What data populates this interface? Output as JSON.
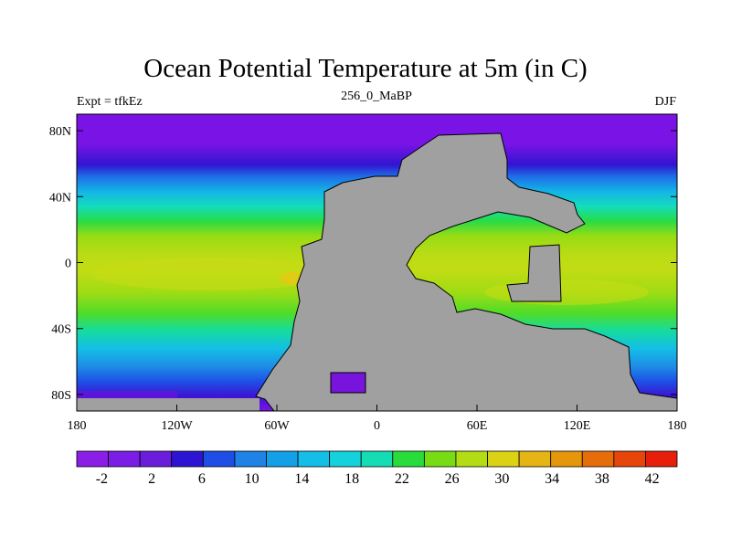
{
  "title": "Ocean Potential Temperature at 5m (in C)",
  "left_label": "Expt = tfkEz",
  "center_label": "256_0_MaBP",
  "right_label": "DJF",
  "lat_ticks": [
    {
      "label": "80N",
      "value": 80
    },
    {
      "label": "40N",
      "value": 40
    },
    {
      "label": "0",
      "value": 0
    },
    {
      "label": "40S",
      "value": -40
    },
    {
      "label": "80S",
      "value": -80
    }
  ],
  "lon_ticks": [
    {
      "label": "180",
      "value": -180
    },
    {
      "label": "120W",
      "value": -120
    },
    {
      "label": "60W",
      "value": -60
    },
    {
      "label": "0",
      "value": 0
    },
    {
      "label": "60E",
      "value": 60
    },
    {
      "label": "120E",
      "value": 120
    },
    {
      "label": "180",
      "value": 180
    }
  ],
  "colorbar": {
    "colors": [
      "#8a1ee6",
      "#7a1ee6",
      "#6a1edc",
      "#2d14d2",
      "#1e4ee6",
      "#1e82e6",
      "#14a0e6",
      "#14bee6",
      "#14d2dc",
      "#14dcb4",
      "#28dc3c",
      "#78dc14",
      "#b4dc14",
      "#dcd214",
      "#e6b414",
      "#e6960a",
      "#e66e0a",
      "#e6460a",
      "#e61e0a"
    ],
    "labels": [
      {
        "text": "-2",
        "index": 1
      },
      {
        "text": "2",
        "index": 3
      },
      {
        "text": "6",
        "index": 5
      },
      {
        "text": "10",
        "index": 7
      },
      {
        "text": "14",
        "index": 9
      },
      {
        "text": "18",
        "index": 11
      },
      {
        "text": "22",
        "index": 13
      },
      {
        "text": "26",
        "index": 15
      },
      {
        "text": "30",
        "index": 17
      },
      {
        "text": "34",
        "index": 19
      },
      {
        "text": "38",
        "index": 21
      },
      {
        "text": "42",
        "index": 23
      }
    ]
  },
  "colors": {
    "land": "#a0a0a0",
    "polar": "#7814dc",
    "boundary": "#000000"
  }
}
